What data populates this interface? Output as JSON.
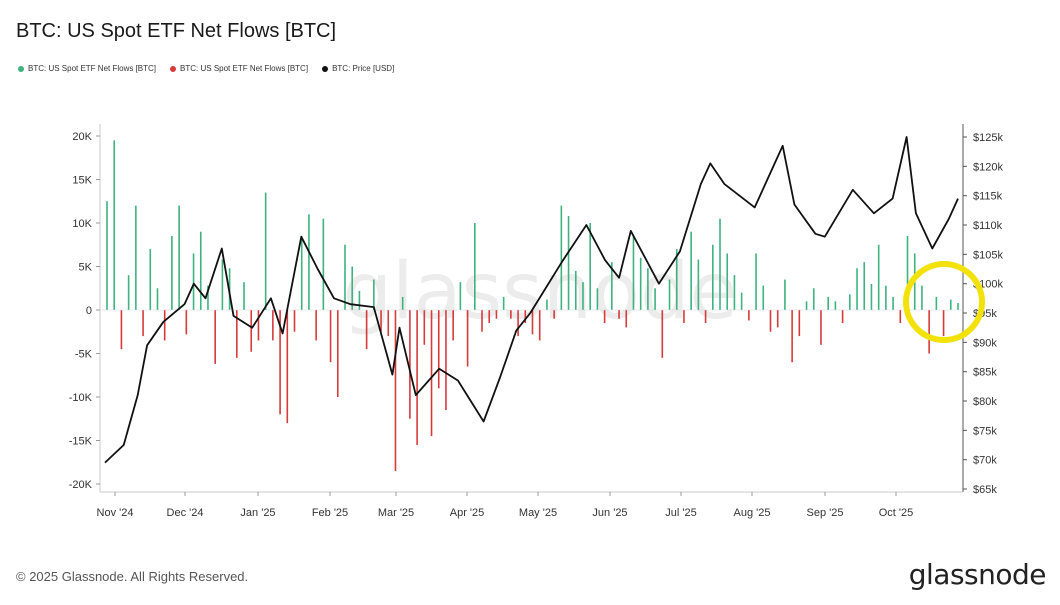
{
  "header": {
    "title": "BTC: US Spot ETF Net Flows [BTC]"
  },
  "legend": [
    {
      "label": "BTC: US Spot ETF Net Flows [BTC]",
      "color": "#3fb27f"
    },
    {
      "label": "BTC: US Spot ETF Net Flows [BTC]",
      "color": "#d63b3b"
    },
    {
      "label": "BTC: Price [USD]",
      "color": "#111111"
    }
  ],
  "footer": {
    "copyright": "© 2025 Glassnode. All Rights Reserved.",
    "brand": "glassnode",
    "watermark": "glassnode"
  },
  "colors": {
    "positive": "#3fb27f",
    "negative": "#d63b3b",
    "price": "#111111",
    "highlight": "#f2e20a"
  },
  "chart_data": {
    "type": "bar",
    "title": "BTC: US Spot ETF Net Flows [BTC]",
    "xlabel": "",
    "ylabel": "",
    "grid": false,
    "legend_position": "top-left",
    "x_ticks": [
      "Nov '24",
      "Dec '24",
      "Jan '25",
      "Feb '25",
      "Mar '25",
      "Apr '25",
      "May '25",
      "Jun '25",
      "Jul '25",
      "Aug '25",
      "Sep '25",
      "Oct '25"
    ],
    "y_left": {
      "ticks": [
        20000,
        15000,
        10000,
        5000,
        0,
        -5000,
        -10000,
        -15000,
        -20000
      ],
      "tick_labels": [
        "20K",
        "15K",
        "10K",
        "5K",
        "0",
        "-5K",
        "-10K",
        "-15K",
        "-20K"
      ],
      "range": [
        -20000,
        20000
      ]
    },
    "y_right": {
      "ticks": [
        125000,
        120000,
        115000,
        110000,
        105000,
        100000,
        95000,
        90000,
        85000,
        80000,
        75000,
        70000,
        65000
      ],
      "tick_labels": [
        "$125k",
        "$120k",
        "$115k",
        "$110k",
        "$105k",
        "$100k",
        "$95k",
        "$90k",
        "$85k",
        "$80k",
        "$75k",
        "$70k",
        "$65k"
      ],
      "range": [
        65000,
        126500
      ]
    },
    "series": [
      {
        "name": "BTC: US Spot ETF Net Flows [BTC]",
        "kind": "bar",
        "weekly_flows": [
          12500,
          19500,
          -4500,
          4000,
          12000,
          -3000,
          7000,
          2500,
          -3500,
          8500,
          12000,
          -2800,
          6500,
          9000,
          2800,
          -6200,
          5800,
          4800,
          -5500,
          3200,
          -4800,
          -3500,
          13500,
          -3500,
          -12000,
          -13000,
          -2500,
          8500,
          11000,
          -3500,
          10500,
          -6000,
          -10000,
          7500,
          5000,
          2200,
          -4500,
          3500,
          -2500,
          -3000,
          -18500,
          1500,
          -12500,
          -15500,
          -4000,
          -14500,
          -9000,
          -11500,
          -3500,
          3200,
          -6500,
          10000,
          -2500,
          -1500,
          -1000,
          1500,
          -1000,
          -3000,
          -1500,
          -2800,
          -3500,
          1200,
          -1000,
          12000,
          10800,
          4500,
          3200,
          10000,
          2500,
          -1500,
          5500,
          -1000,
          -2000,
          8500,
          6000,
          4800,
          2500,
          -5500,
          3500,
          7000,
          -1500,
          9000,
          5800,
          -1500,
          7500,
          10500,
          6500,
          4000,
          2000,
          -1200,
          6500,
          2800,
          -2500,
          -2000,
          3500,
          -6000,
          -3000,
          1000,
          2500,
          -4000,
          1500,
          1000,
          -1500,
          1800,
          4800,
          5500,
          3000,
          7500,
          2800,
          1500,
          -1500,
          8500,
          6500,
          2800,
          -5000,
          1500,
          -3000,
          1200,
          800
        ]
      },
      {
        "name": "BTC: Price [USD]",
        "kind": "line",
        "dates": [
          "2024-10-28",
          "2024-11-05",
          "2024-11-11",
          "2024-11-15",
          "2024-11-22",
          "2024-12-01",
          "2024-12-05",
          "2024-12-10",
          "2024-12-17",
          "2024-12-22",
          "2024-12-30",
          "2025-01-07",
          "2025-01-12",
          "2025-01-20",
          "2025-01-27",
          "2025-02-03",
          "2025-02-10",
          "2025-02-20",
          "2025-02-28",
          "2025-03-03",
          "2025-03-10",
          "2025-03-20",
          "2025-03-28",
          "2025-04-08",
          "2025-04-15",
          "2025-04-22",
          "2025-04-28",
          "2025-05-12",
          "2025-05-22",
          "2025-05-30",
          "2025-06-05",
          "2025-06-10",
          "2025-06-22",
          "2025-07-01",
          "2025-07-10",
          "2025-07-14",
          "2025-07-20",
          "2025-08-02",
          "2025-08-14",
          "2025-08-19",
          "2025-08-28",
          "2025-09-01",
          "2025-09-13",
          "2025-09-22",
          "2025-09-30",
          "2025-10-06",
          "2025-10-10",
          "2025-10-17",
          "2025-10-24",
          "2025-10-28"
        ],
        "values": [
          69500,
          72500,
          81000,
          89500,
          93500,
          96500,
          100000,
          97500,
          106000,
          94500,
          92500,
          97500,
          91500,
          108000,
          102500,
          97500,
          96500,
          96000,
          84500,
          92500,
          81000,
          85500,
          83500,
          76500,
          84000,
          92000,
          95000,
          104000,
          110000,
          104000,
          101000,
          109000,
          100000,
          105500,
          117000,
          120500,
          117000,
          113000,
          123500,
          113500,
          108500,
          108000,
          116000,
          112000,
          114500,
          125000,
          112000,
          106000,
          111000,
          114500
        ]
      }
    ],
    "annotations": [
      {
        "type": "circle",
        "color": "#f2e20a",
        "around": "Oct '25"
      }
    ]
  }
}
